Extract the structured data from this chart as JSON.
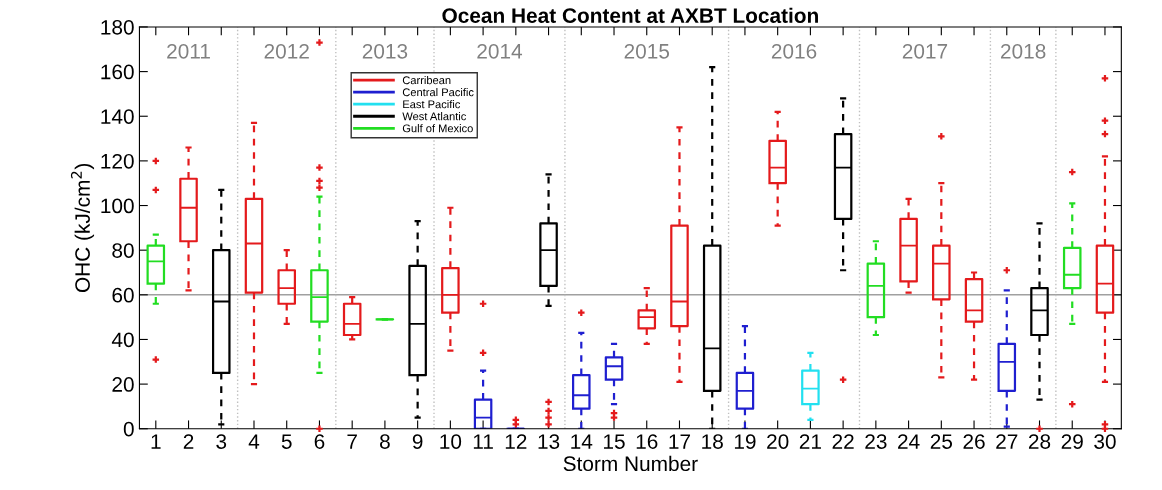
{
  "chart_data": {
    "type": "box",
    "title": "Ocean Heat Content at AXBT Location",
    "xlabel": "Storm Number",
    "ylabel": "OHC (kJ/cm$^{2}$)",
    "x": [
      1,
      2,
      3,
      4,
      5,
      6,
      7,
      8,
      9,
      10,
      11,
      12,
      13,
      14,
      15,
      16,
      17,
      18,
      19,
      20,
      21,
      22,
      23,
      24,
      25,
      26,
      27,
      28,
      29,
      30
    ],
    "xlim": [
      0.5,
      30.5
    ],
    "xticks": [
      1,
      2,
      3,
      4,
      5,
      6,
      7,
      8,
      9,
      10,
      11,
      12,
      13,
      14,
      15,
      16,
      17,
      18,
      19,
      20,
      21,
      22,
      23,
      24,
      25,
      26,
      27,
      28,
      29,
      30
    ],
    "ylim": [
      0,
      180
    ],
    "yticks": [
      0,
      20,
      40,
      60,
      80,
      100,
      120,
      140,
      160,
      180
    ],
    "grid": false,
    "legend": "top left",
    "line_style": "dashed",
    "series": [
      {
        "name": "Carribean",
        "color": "#e41a1c",
        "boxes": [
          null,
          {
            "low": 62,
            "q1": 84,
            "median": 99,
            "q3": 112,
            "high": 126
          },
          null,
          {
            "low": 20,
            "q1": 61,
            "median": 83,
            "q3": 103,
            "high": 137
          },
          {
            "low": 47,
            "q1": 56,
            "median": 63,
            "q3": 71,
            "high": 80
          },
          null,
          {
            "low": 40,
            "q1": 42,
            "median": 47,
            "q3": 56,
            "high": 59
          },
          null,
          null,
          {
            "low": 35,
            "q1": 52,
            "median": 60,
            "q3": 72,
            "high": 99
          },
          null,
          null,
          null,
          null,
          null,
          {
            "low": 38,
            "q1": 45,
            "median": 50,
            "q3": 53,
            "high": 63
          },
          {
            "low": 21,
            "q1": 46,
            "median": 57,
            "q3": 91,
            "high": 135
          },
          null,
          null,
          {
            "low": 91,
            "q1": 110,
            "median": 117,
            "q3": 129,
            "high": 142
          },
          null,
          null,
          null,
          {
            "low": 61,
            "q1": 66,
            "median": 82,
            "q3": 94,
            "high": 103
          },
          {
            "low": 23,
            "q1": 58,
            "median": 74,
            "q3": 82,
            "high": 110
          },
          {
            "low": 22,
            "q1": 48,
            "median": 53,
            "q3": 67,
            "high": 70
          },
          null,
          null,
          null,
          {
            "low": 21,
            "q1": 52,
            "median": 65,
            "q3": 82,
            "high": 122
          }
        ]
      },
      {
        "name": "Central Pacific",
        "color": "#1f1fd0",
        "boxes": [
          null,
          null,
          null,
          null,
          null,
          null,
          null,
          null,
          null,
          null,
          {
            "low": 0,
            "q1": 0,
            "median": 5,
            "q3": 13,
            "high": 26
          },
          {
            "low": 0,
            "q1": 0,
            "median": 0,
            "q3": 0,
            "high": 0
          },
          null,
          {
            "low": 0,
            "q1": 9,
            "median": 15,
            "q3": 24,
            "high": 43
          },
          {
            "low": 11,
            "q1": 22,
            "median": 28,
            "q3": 32,
            "high": 38
          },
          null,
          null,
          null,
          {
            "low": 0,
            "q1": 9,
            "median": 17,
            "q3": 25,
            "high": 46
          },
          null,
          null,
          null,
          null,
          null,
          null,
          null,
          {
            "low": 1,
            "q1": 17,
            "median": 30,
            "q3": 38,
            "high": 62
          },
          null,
          null,
          null
        ]
      },
      {
        "name": "East Pacific",
        "color": "#22e0f0",
        "boxes": [
          null,
          null,
          null,
          null,
          null,
          null,
          null,
          null,
          null,
          null,
          null,
          null,
          null,
          null,
          null,
          null,
          null,
          null,
          null,
          null,
          {
            "low": 4,
            "q1": 11,
            "median": 18,
            "q3": 26,
            "high": 34
          },
          null,
          null,
          null,
          null,
          null,
          null,
          null,
          null,
          null
        ]
      },
      {
        "name": "West Atlantic",
        "color": "#000000",
        "boxes": [
          null,
          null,
          {
            "low": 2,
            "q1": 25,
            "median": 57,
            "q3": 80,
            "high": 107
          },
          null,
          null,
          null,
          null,
          null,
          {
            "low": 5,
            "q1": 24,
            "median": 47,
            "q3": 73,
            "high": 93
          },
          null,
          null,
          null,
          {
            "low": 55,
            "q1": 64,
            "median": 80,
            "q3": 92,
            "high": 114
          },
          null,
          null,
          null,
          null,
          {
            "low": 0,
            "q1": 17,
            "median": 36,
            "q3": 82,
            "high": 162
          },
          null,
          null,
          null,
          {
            "low": 71,
            "q1": 94,
            "median": 117,
            "q3": 132,
            "high": 148
          },
          null,
          null,
          null,
          null,
          null,
          {
            "low": 13,
            "q1": 42,
            "median": 53,
            "q3": 63,
            "high": 92
          },
          null,
          null
        ]
      },
      {
        "name": "Gulf of Mexico",
        "color": "#22dd22",
        "boxes": [
          {
            "low": 56,
            "q1": 65,
            "median": 75,
            "q3": 82,
            "high": 87
          },
          null,
          null,
          null,
          null,
          {
            "low": 25,
            "q1": 48,
            "median": 59,
            "q3": 71,
            "high": 104
          },
          null,
          {
            "low": 49,
            "q1": 49,
            "median": 49,
            "q3": 49,
            "high": 49
          },
          null,
          null,
          null,
          null,
          null,
          null,
          null,
          null,
          null,
          null,
          null,
          null,
          null,
          null,
          {
            "low": 42,
            "q1": 50,
            "median": 64,
            "q3": 74,
            "high": 84
          },
          null,
          null,
          null,
          null,
          null,
          {
            "low": 47,
            "q1": 63,
            "median": 69,
            "q3": 81,
            "high": 101
          },
          null
        ]
      },
      {
        "type": "scatter",
        "color": "#e41a1c",
        "marker": "cross",
        "x": [
          1,
          1,
          1,
          6,
          6,
          6,
          6,
          6,
          11,
          11,
          12,
          12,
          13,
          13,
          13,
          13,
          14,
          15,
          15,
          22,
          25,
          27,
          28,
          29,
          29,
          30,
          30,
          30,
          30,
          30
        ],
        "values": [
          31,
          107,
          120,
          0,
          108,
          111,
          117,
          173,
          34,
          56,
          2,
          4,
          2,
          5,
          8,
          12,
          52,
          5,
          7,
          22,
          131,
          71,
          0,
          11,
          115,
          0,
          2,
          132,
          138,
          157
        ]
      }
    ],
    "ref_lines": [
      {
        "axis": "y",
        "value": 60,
        "color": "#a0a0a0",
        "line_style": "solid"
      },
      {
        "axis": "x",
        "value": 3.5,
        "color": "#c0c0c0",
        "line_style": "dotted"
      },
      {
        "axis": "x",
        "value": 6.5,
        "color": "#c0c0c0",
        "line_style": "dotted"
      },
      {
        "axis": "x",
        "value": 9.5,
        "color": "#c0c0c0",
        "line_style": "dotted"
      },
      {
        "axis": "x",
        "value": 13.5,
        "color": "#c0c0c0",
        "line_style": "dotted"
      },
      {
        "axis": "x",
        "value": 18.5,
        "color": "#c0c0c0",
        "line_style": "dotted"
      },
      {
        "axis": "x",
        "value": 22.5,
        "color": "#c0c0c0",
        "line_style": "dotted"
      },
      {
        "axis": "x",
        "value": 26.5,
        "color": "#c0c0c0",
        "line_style": "dotted"
      },
      {
        "axis": "x",
        "value": 28.5,
        "color": "#c0c0c0",
        "line_style": "dotted"
      }
    ],
    "annotations": [
      "2011",
      "2012",
      "2013",
      "2014",
      "2015",
      "2016",
      "2017",
      "2018"
    ]
  }
}
